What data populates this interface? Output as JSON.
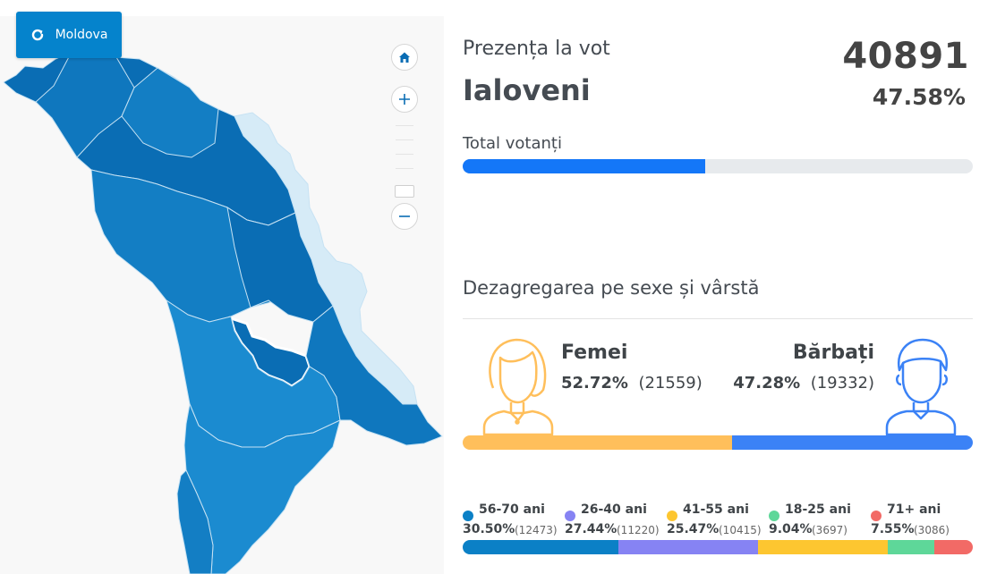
{
  "map": {
    "reset_button_label": "Moldova",
    "colors": {
      "region_dark": "#0a6db4",
      "region_mid": "#137ec4",
      "region_light": "#1b8bd0",
      "transnistria": "#d6ebf7",
      "border": "#c7e2f3",
      "selected_border": "#ffffff"
    },
    "controls": [
      "home-icon",
      "plus-icon",
      "minus-icon"
    ]
  },
  "panel": {
    "subtitle": "Prezența la vot",
    "region": "Ialoveni",
    "total_count": "40891",
    "total_percent": "47.58%",
    "total_label": "Total votanți",
    "total_fraction": 0.4758,
    "section_title": "Dezagregarea pe sexe și vârstă",
    "women": {
      "label": "Femei",
      "percent": "52.72%",
      "count": "(21559)",
      "fraction": 0.5272,
      "color": "#ffbf5b",
      "icon": "woman-avatar-icon"
    },
    "men": {
      "label": "Bărbați",
      "percent": "47.28%",
      "count": "(19332)",
      "fraction": 0.4728,
      "color": "#3b82f6",
      "icon": "man-avatar-icon"
    },
    "age_groups": [
      {
        "name": "56-70 ani",
        "percent": "30.50%",
        "count": "(12473)",
        "fraction": 0.305,
        "color": "#0b80c6"
      },
      {
        "name": "26-40 ani",
        "percent": "27.44%",
        "count": "(11220)",
        "fraction": 0.2744,
        "color": "#8683f3"
      },
      {
        "name": "41-55 ani",
        "percent": "25.47%",
        "count": "(10415)",
        "fraction": 0.2547,
        "color": "#fdc630"
      },
      {
        "name": "18-25 ani",
        "percent": "9.04%",
        "count": "(3697)",
        "fraction": 0.0904,
        "color": "#5ed799"
      },
      {
        "name": "71+ ani",
        "percent": "7.55%",
        "count": "(3086)",
        "fraction": 0.0755,
        "color": "#f26a66"
      }
    ]
  }
}
